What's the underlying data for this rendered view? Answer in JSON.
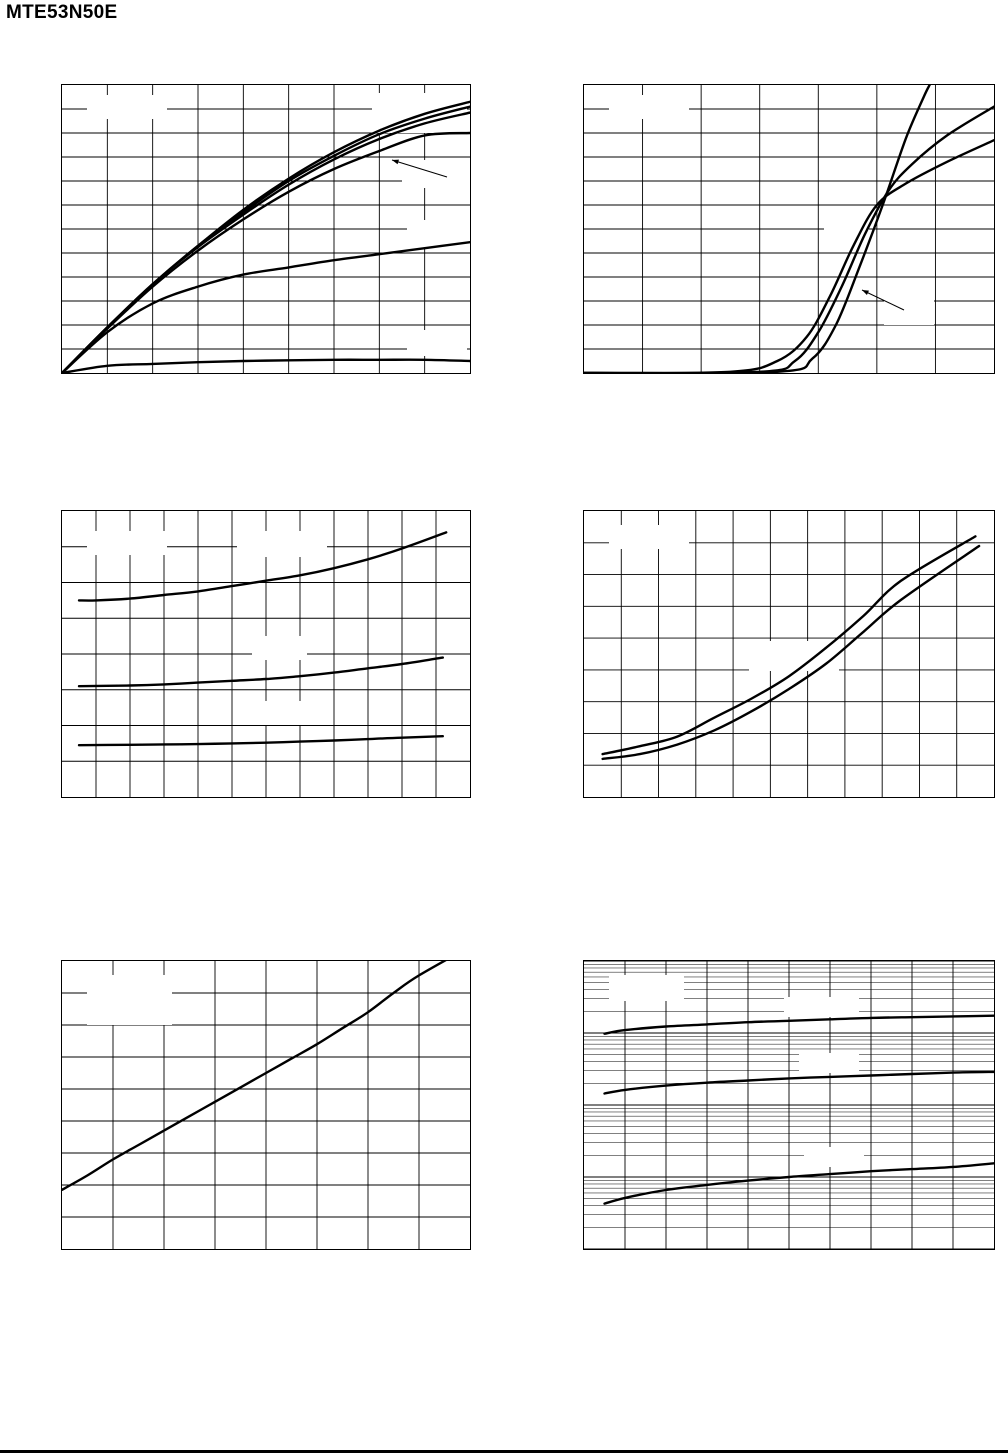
{
  "header": {
    "part_number": "MTE53N50E"
  },
  "chart_data": [
    {
      "id": "chart1",
      "type": "line",
      "title": "",
      "xlabel": "",
      "ylabel": "",
      "xlim": [
        0,
        9
      ],
      "ylim": [
        0,
        12
      ],
      "grid": true,
      "series": [
        {
          "values": [
            [
              0,
              0
            ],
            [
              1,
              1.9
            ],
            [
              2,
              3.7
            ],
            [
              3,
              5.3
            ],
            [
              4,
              6.8
            ],
            [
              5,
              8.1
            ],
            [
              6,
              9.2
            ],
            [
              7,
              10.1
            ],
            [
              8,
              10.8
            ],
            [
              9,
              11.3
            ]
          ]
        },
        {
          "values": [
            [
              0,
              0
            ],
            [
              1,
              1.9
            ],
            [
              2,
              3.7
            ],
            [
              3,
              5.3
            ],
            [
              4,
              6.7
            ],
            [
              5,
              8.0
            ],
            [
              6,
              9.05
            ],
            [
              7,
              9.95
            ],
            [
              8,
              10.6
            ],
            [
              9,
              11.1
            ]
          ]
        },
        {
          "values": [
            [
              0,
              0
            ],
            [
              1,
              1.9
            ],
            [
              2,
              3.7
            ],
            [
              3,
              5.25
            ],
            [
              4,
              6.6
            ],
            [
              5,
              7.85
            ],
            [
              6,
              8.9
            ],
            [
              7,
              9.75
            ],
            [
              8,
              10.4
            ],
            [
              9,
              10.85
            ]
          ]
        },
        {
          "values": [
            [
              0,
              0
            ],
            [
              1,
              1.85
            ],
            [
              2,
              3.6
            ],
            [
              3,
              5.1
            ],
            [
              4,
              6.4
            ],
            [
              5,
              7.55
            ],
            [
              6,
              8.5
            ],
            [
              7,
              9.25
            ],
            [
              8,
              9.9
            ],
            [
              9,
              10.0
            ]
          ]
        },
        {
          "values": [
            [
              0,
              0
            ],
            [
              1,
              1.7
            ],
            [
              2,
              2.9
            ],
            [
              3,
              3.6
            ],
            [
              4,
              4.1
            ],
            [
              5,
              4.4
            ],
            [
              6,
              4.7
            ],
            [
              7,
              4.95
            ],
            [
              8,
              5.2
            ],
            [
              9,
              5.45
            ]
          ]
        },
        {
          "values": [
            [
              0,
              0
            ],
            [
              1,
              0.3
            ],
            [
              2,
              0.38
            ],
            [
              3,
              0.45
            ],
            [
              4,
              0.5
            ],
            [
              5,
              0.53
            ],
            [
              6,
              0.55
            ],
            [
              7,
              0.55
            ],
            [
              8,
              0.55
            ],
            [
              9,
              0.5
            ]
          ]
        }
      ]
    },
    {
      "id": "chart2",
      "type": "line",
      "title": "",
      "xlabel": "",
      "ylabel": "",
      "xlim": [
        0,
        7
      ],
      "ylim": [
        0,
        12
      ],
      "grid": true,
      "series": [
        {
          "values": [
            [
              0,
              0
            ],
            [
              2.5,
              0.05
            ],
            [
              3.3,
              0.5
            ],
            [
              3.8,
              1.5
            ],
            [
              4.2,
              3.2
            ],
            [
              4.6,
              5.3
            ],
            [
              5.0,
              7.0
            ],
            [
              5.5,
              7.9
            ],
            [
              6.2,
              8.8
            ],
            [
              7,
              9.7
            ]
          ]
        },
        {
          "values": [
            [
              0,
              0
            ],
            [
              3.0,
              0.05
            ],
            [
              3.6,
              0.5
            ],
            [
              4.0,
              1.7
            ],
            [
              4.4,
              3.6
            ],
            [
              4.8,
              5.8
            ],
            [
              5.2,
              7.6
            ],
            [
              5.6,
              8.7
            ],
            [
              6.2,
              9.9
            ],
            [
              7,
              11.1
            ]
          ]
        },
        {
          "values": [
            [
              0,
              0
            ],
            [
              3.3,
              0.05
            ],
            [
              3.9,
              0.6
            ],
            [
              4.3,
              2.0
            ],
            [
              4.7,
              4.4
            ],
            [
              5.1,
              7.0
            ],
            [
              5.5,
              9.8
            ],
            [
              5.8,
              11.5
            ],
            [
              5.9,
              12
            ]
          ]
        }
      ]
    },
    {
      "id": "chart3",
      "type": "line",
      "title": "",
      "xlabel": "",
      "ylabel": "",
      "xlim": [
        0,
        12
      ],
      "ylim": [
        0,
        8
      ],
      "grid": true,
      "series": [
        {
          "values": [
            [
              0.5,
              5.5
            ],
            [
              1,
              5.5
            ],
            [
              2,
              5.55
            ],
            [
              3,
              5.65
            ],
            [
              4,
              5.75
            ],
            [
              5,
              5.9
            ],
            [
              6,
              6.05
            ],
            [
              7,
              6.2
            ],
            [
              8,
              6.4
            ],
            [
              9,
              6.65
            ],
            [
              10,
              6.95
            ],
            [
              11.3,
              7.4
            ]
          ]
        },
        {
          "values": [
            [
              0.5,
              3.1
            ],
            [
              2,
              3.12
            ],
            [
              3,
              3.15
            ],
            [
              4,
              3.2
            ],
            [
              5,
              3.25
            ],
            [
              6,
              3.3
            ],
            [
              7,
              3.38
            ],
            [
              8,
              3.48
            ],
            [
              9,
              3.6
            ],
            [
              10,
              3.72
            ],
            [
              11.2,
              3.9
            ]
          ]
        },
        {
          "values": [
            [
              0.5,
              1.45
            ],
            [
              2,
              1.46
            ],
            [
              3,
              1.47
            ],
            [
              4,
              1.48
            ],
            [
              5,
              1.5
            ],
            [
              6,
              1.52
            ],
            [
              7,
              1.55
            ],
            [
              8,
              1.58
            ],
            [
              9,
              1.62
            ],
            [
              10,
              1.66
            ],
            [
              11.2,
              1.7
            ]
          ]
        }
      ]
    },
    {
      "id": "chart4",
      "type": "line",
      "title": "",
      "xlabel": "",
      "ylabel": "",
      "xlim": [
        0,
        11
      ],
      "ylim": [
        0,
        9
      ],
      "grid": true,
      "series": [
        {
          "values": [
            [
              0.5,
              1.35
            ],
            [
              1.5,
              1.6
            ],
            [
              2.5,
              1.9
            ],
            [
              3.5,
              2.5
            ],
            [
              4.5,
              3.1
            ],
            [
              5.5,
              3.8
            ],
            [
              6.5,
              4.7
            ],
            [
              7.5,
              5.7
            ],
            [
              8.5,
              6.8
            ],
            [
              10.5,
              8.2
            ]
          ]
        },
        {
          "values": [
            [
              0.5,
              1.2
            ],
            [
              1.5,
              1.35
            ],
            [
              2.5,
              1.65
            ],
            [
              3.5,
              2.1
            ],
            [
              4.5,
              2.7
            ],
            [
              5.5,
              3.4
            ],
            [
              6.5,
              4.2
            ],
            [
              7.5,
              5.2
            ],
            [
              8.5,
              6.2
            ],
            [
              10.6,
              7.9
            ]
          ]
        }
      ]
    },
    {
      "id": "chart5",
      "type": "line",
      "title": "",
      "xlabel": "",
      "ylabel": "",
      "xlim": [
        0,
        8
      ],
      "ylim": [
        0,
        9
      ],
      "grid": true,
      "series": [
        {
          "values": [
            [
              0,
              1.85
            ],
            [
              0.5,
              2.3
            ],
            [
              1,
              2.8
            ],
            [
              1.5,
              3.25
            ],
            [
              2,
              3.7
            ],
            [
              2.5,
              4.15
            ],
            [
              3,
              4.6
            ],
            [
              3.5,
              5.05
            ],
            [
              4,
              5.5
            ],
            [
              4.5,
              5.95
            ],
            [
              5,
              6.4
            ],
            [
              5.5,
              6.9
            ],
            [
              6,
              7.4
            ],
            [
              6.5,
              8.0
            ],
            [
              7,
              8.55
            ],
            [
              8,
              9.45
            ]
          ]
        }
      ]
    },
    {
      "id": "chart6",
      "type": "line",
      "title": "",
      "xlabel": "",
      "ylabel": "",
      "xlim": [
        0,
        10
      ],
      "ylim": [
        0,
        4
      ],
      "grid": true,
      "series": [
        {
          "values": [
            [
              0.5,
              2.99
            ],
            [
              1,
              3.04
            ],
            [
              2,
              3.09
            ],
            [
              3,
              3.12
            ],
            [
              4,
              3.15
            ],
            [
              5,
              3.17
            ],
            [
              6,
              3.19
            ],
            [
              7,
              3.21
            ],
            [
              8,
              3.22
            ],
            [
              9,
              3.23
            ],
            [
              10,
              3.24
            ]
          ]
        },
        {
          "values": [
            [
              0.5,
              2.16
            ],
            [
              1,
              2.21
            ],
            [
              2,
              2.27
            ],
            [
              3,
              2.31
            ],
            [
              4,
              2.34
            ],
            [
              5,
              2.37
            ],
            [
              6,
              2.39
            ],
            [
              7,
              2.41
            ],
            [
              8,
              2.43
            ],
            [
              9,
              2.45
            ],
            [
              10,
              2.46
            ]
          ]
        },
        {
          "values": [
            [
              0.5,
              0.63
            ],
            [
              1,
              0.71
            ],
            [
              2,
              0.82
            ],
            [
              3,
              0.89
            ],
            [
              4,
              0.95
            ],
            [
              5,
              1.0
            ],
            [
              6,
              1.04
            ],
            [
              7,
              1.08
            ],
            [
              8,
              1.11
            ],
            [
              9,
              1.14
            ],
            [
              10,
              1.19
            ]
          ]
        }
      ]
    }
  ]
}
